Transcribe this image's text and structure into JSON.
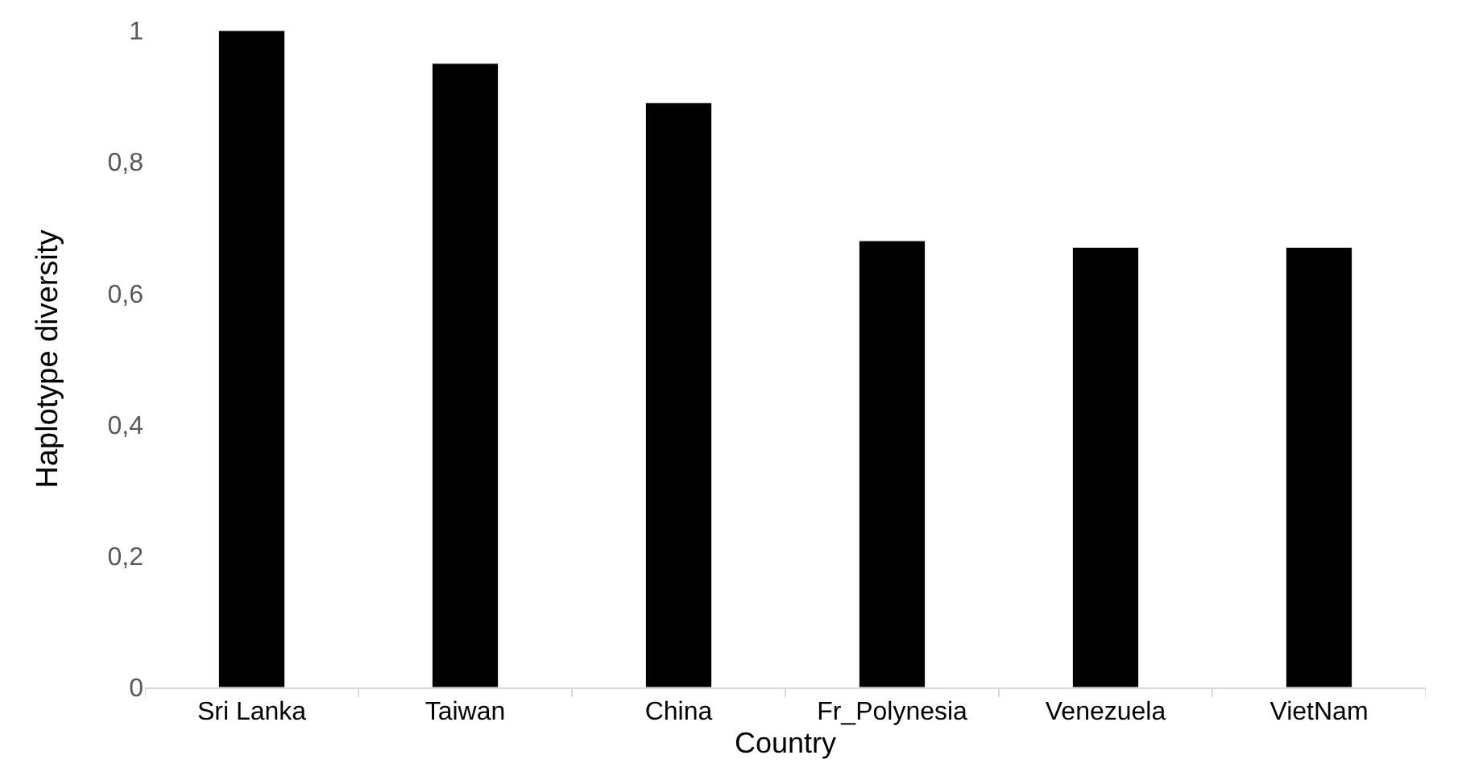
{
  "chart_data": {
    "type": "bar",
    "xlabel": "Country",
    "ylabel": "Haplotype diversity",
    "categories": [
      "Sri Lanka",
      "Taiwan",
      "China",
      "Fr_Polynesia",
      "Venezuela",
      "VietNam"
    ],
    "values": [
      1.0,
      0.95,
      0.89,
      0.68,
      0.67,
      0.67
    ],
    "color": "#000000",
    "ylim": [
      0,
      1
    ],
    "yticks": [
      0,
      {
        "value": 0.2,
        "label": "0,2"
      },
      {
        "value": 0.4,
        "label": "0,4"
      },
      {
        "value": 0.6,
        "label": "0,6"
      },
      {
        "value": 0.8,
        "label": "0,8"
      },
      1
    ],
    "legend": false
  }
}
